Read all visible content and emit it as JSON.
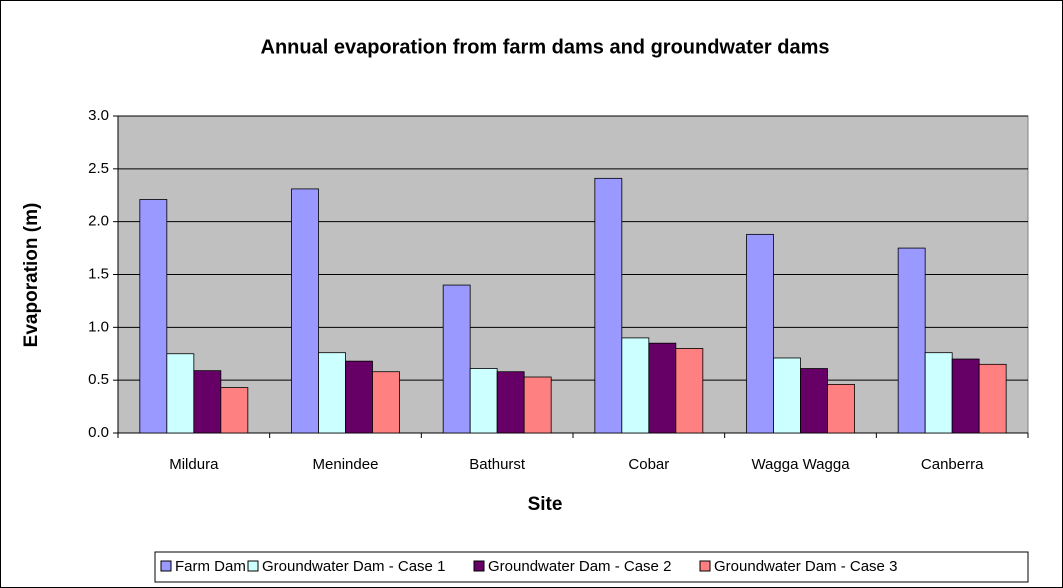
{
  "chart_data": {
    "type": "bar",
    "title": "Annual evaporation from farm dams and groundwater dams",
    "x_label": "Site",
    "y_label": "Evaporation (m)",
    "categories": [
      "Mildura",
      "Menindee",
      "Bathurst",
      "Cobar",
      "Wagga Wagga",
      "Canberra"
    ],
    "series": [
      {
        "name": "Farm Dam",
        "color": "#9999ff",
        "values": [
          2.21,
          2.31,
          1.4,
          2.41,
          1.88,
          1.75
        ]
      },
      {
        "name": "Groundwater Dam - Case 1",
        "color": "#ccffff",
        "values": [
          0.75,
          0.76,
          0.61,
          0.9,
          0.71,
          0.76
        ]
      },
      {
        "name": "Groundwater Dam - Case 2",
        "color": "#660066",
        "values": [
          0.59,
          0.68,
          0.58,
          0.85,
          0.61,
          0.7
        ]
      },
      {
        "name": "Groundwater Dam - Case 3",
        "color": "#ff8080",
        "values": [
          0.43,
          0.58,
          0.53,
          0.8,
          0.46,
          0.65
        ]
      }
    ],
    "ylim": [
      0,
      3
    ],
    "yticks": [
      {
        "value": 0,
        "label": "0.0"
      },
      0.5,
      {
        "value": 1,
        "label": "1.0"
      },
      1.5,
      {
        "value": 2,
        "label": "2.0"
      },
      2.5,
      {
        "value": 3,
        "label": "3.0"
      }
    ],
    "grid": true,
    "legend": "bottom",
    "plot_background": "#c0c0c0"
  }
}
